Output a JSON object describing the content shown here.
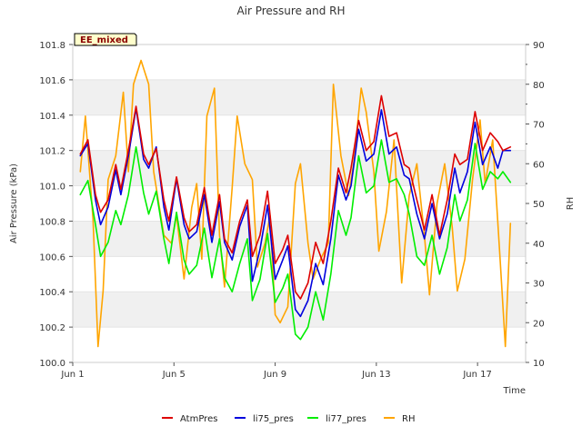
{
  "chart_data": {
    "type": "line",
    "title": "Air Pressure and RH",
    "xlabel": "Time",
    "ylabel": "Air Pressure (kPa)",
    "ylabel_right": "RH",
    "badge": "EE_mixed",
    "xlim": [
      1.0,
      18.9
    ],
    "ylim": [
      100.0,
      101.8
    ],
    "ylim_right": [
      10,
      90
    ],
    "x_ticks": [
      1,
      5,
      9,
      13,
      17
    ],
    "x_tick_labels": [
      "Jun 1",
      "Jun 5",
      "Jun 9",
      "Jun 13",
      "Jun 17"
    ],
    "y_ticks": [
      100.0,
      100.2,
      100.4,
      100.6,
      100.8,
      101.0,
      101.2,
      101.4,
      101.6,
      101.8
    ],
    "y_tick_labels": [
      "100.0",
      "100.2",
      "100.4",
      "100.6",
      "100.8",
      "101.0",
      "101.2",
      "101.4",
      "101.6",
      "101.8"
    ],
    "y_ticks_right": [
      10,
      20,
      30,
      40,
      50,
      60,
      70,
      80,
      90
    ],
    "y_tick_labels_right": [
      "10",
      "20",
      "30",
      "40",
      "50",
      "60",
      "70",
      "80",
      "90"
    ],
    "grid": "horizontal bands",
    "legend_position": "bottom",
    "series": [
      {
        "name": "AtmPres",
        "color": "#dd0000",
        "axis": "left",
        "x": [
          1.3,
          1.6,
          1.9,
          2.1,
          2.4,
          2.7,
          2.9,
          3.2,
          3.5,
          3.8,
          4.0,
          4.3,
          4.6,
          4.8,
          5.1,
          5.4,
          5.6,
          5.9,
          6.2,
          6.5,
          6.8,
          7.0,
          7.3,
          7.6,
          7.9,
          8.1,
          8.4,
          8.7,
          9.0,
          9.3,
          9.5,
          9.8,
          10.0,
          10.3,
          10.6,
          10.9,
          11.2,
          11.5,
          11.8,
          12.0,
          12.3,
          12.6,
          12.9,
          13.2,
          13.5,
          13.8,
          14.1,
          14.3,
          14.6,
          14.9,
          15.2,
          15.5,
          15.8,
          16.1,
          16.3,
          16.6,
          16.9,
          17.2,
          17.5,
          17.8,
          18.0,
          18.3
        ],
        "y": [
          101.18,
          101.26,
          100.95,
          100.85,
          100.92,
          101.12,
          100.98,
          101.2,
          101.45,
          101.18,
          101.12,
          101.21,
          100.92,
          100.8,
          101.05,
          100.82,
          100.74,
          100.78,
          100.99,
          100.72,
          100.95,
          100.7,
          100.62,
          100.8,
          100.92,
          100.6,
          100.72,
          100.97,
          100.56,
          100.64,
          100.72,
          100.4,
          100.36,
          100.45,
          100.68,
          100.56,
          100.8,
          101.1,
          100.96,
          101.1,
          101.37,
          101.2,
          101.25,
          101.51,
          101.28,
          101.3,
          101.12,
          101.1,
          100.92,
          100.75,
          100.95,
          100.72,
          100.92,
          101.18,
          101.12,
          101.15,
          101.42,
          101.2,
          101.3,
          101.25,
          101.2,
          101.22
        ]
      },
      {
        "name": "li75_pres",
        "color": "#0000dd",
        "axis": "left",
        "x": [
          1.3,
          1.6,
          1.9,
          2.1,
          2.4,
          2.7,
          2.9,
          3.2,
          3.5,
          3.8,
          4.0,
          4.3,
          4.6,
          4.8,
          5.1,
          5.4,
          5.6,
          5.9,
          6.2,
          6.5,
          6.8,
          7.0,
          7.3,
          7.6,
          7.9,
          8.1,
          8.4,
          8.7,
          9.0,
          9.3,
          9.5,
          9.8,
          10.0,
          10.3,
          10.6,
          10.9,
          11.2,
          11.5,
          11.8,
          12.0,
          12.3,
          12.6,
          12.9,
          13.2,
          13.5,
          13.8,
          14.1,
          14.3,
          14.6,
          14.9,
          15.2,
          15.5,
          15.8,
          16.1,
          16.3,
          16.6,
          16.9,
          17.2,
          17.5,
          17.8,
          18.0,
          18.3
        ],
        "y": [
          101.17,
          101.24,
          100.92,
          100.78,
          100.88,
          101.09,
          100.95,
          101.17,
          101.44,
          101.15,
          101.1,
          101.22,
          100.88,
          100.75,
          101.04,
          100.78,
          100.7,
          100.74,
          100.95,
          100.68,
          100.91,
          100.68,
          100.58,
          100.77,
          100.89,
          100.46,
          100.64,
          100.89,
          100.47,
          100.58,
          100.66,
          100.3,
          100.26,
          100.35,
          100.56,
          100.44,
          100.7,
          101.06,
          100.92,
          101.0,
          101.32,
          101.14,
          101.18,
          101.43,
          101.18,
          101.22,
          101.06,
          101.04,
          100.84,
          100.7,
          100.9,
          100.7,
          100.84,
          101.1,
          100.96,
          101.08,
          101.36,
          101.12,
          101.22,
          101.1,
          101.2,
          101.2
        ]
      },
      {
        "name": "li77_pres",
        "color": "#00ee00",
        "axis": "left",
        "x": [
          1.3,
          1.6,
          1.9,
          2.1,
          2.4,
          2.7,
          2.9,
          3.2,
          3.5,
          3.8,
          4.0,
          4.3,
          4.6,
          4.8,
          5.1,
          5.4,
          5.6,
          5.9,
          6.2,
          6.5,
          6.8,
          7.0,
          7.3,
          7.6,
          7.9,
          8.1,
          8.4,
          8.7,
          9.0,
          9.3,
          9.5,
          9.8,
          10.0,
          10.3,
          10.6,
          10.9,
          11.2,
          11.5,
          11.8,
          12.0,
          12.3,
          12.6,
          12.9,
          13.2,
          13.5,
          13.8,
          14.1,
          14.3,
          14.6,
          14.9,
          15.2,
          15.5,
          15.8,
          16.1,
          16.3,
          16.6,
          16.9,
          17.2,
          17.5,
          17.8,
          18.0,
          18.3
        ],
        "y": [
          100.95,
          101.03,
          100.78,
          100.6,
          100.68,
          100.86,
          100.78,
          100.95,
          101.22,
          100.96,
          100.84,
          100.97,
          100.7,
          100.56,
          100.85,
          100.58,
          100.5,
          100.55,
          100.76,
          100.48,
          100.7,
          100.48,
          100.4,
          100.56,
          100.7,
          100.35,
          100.47,
          100.73,
          100.34,
          100.42,
          100.5,
          100.16,
          100.13,
          100.2,
          100.4,
          100.24,
          100.5,
          100.86,
          100.72,
          100.82,
          101.17,
          100.96,
          101.0,
          101.26,
          101.02,
          101.04,
          100.95,
          100.84,
          100.6,
          100.55,
          100.72,
          100.5,
          100.65,
          100.95,
          100.8,
          100.92,
          101.24,
          100.98,
          101.08,
          101.04,
          101.08,
          101.02
        ]
      },
      {
        "name": "RH",
        "color": "#ffa500",
        "axis": "right",
        "x": [
          1.3,
          1.5,
          1.8,
          2.0,
          2.2,
          2.4,
          2.7,
          3.0,
          3.2,
          3.4,
          3.7,
          4.0,
          4.2,
          4.6,
          4.9,
          5.1,
          5.4,
          5.7,
          5.9,
          6.1,
          6.3,
          6.6,
          6.8,
          7.0,
          7.3,
          7.5,
          7.8,
          8.1,
          8.3,
          8.6,
          8.8,
          9.0,
          9.2,
          9.5,
          9.8,
          10.0,
          10.3,
          10.5,
          10.8,
          11.1,
          11.3,
          11.6,
          11.9,
          12.1,
          12.4,
          12.6,
          12.9,
          13.1,
          13.4,
          13.7,
          14.0,
          14.3,
          14.6,
          14.9,
          15.1,
          15.4,
          15.7,
          16.0,
          16.2,
          16.5,
          16.8,
          17.1,
          17.3,
          17.6,
          17.9,
          18.1,
          18.3
        ],
        "y": [
          58,
          72,
          46,
          14,
          28,
          56,
          62,
          78,
          58,
          80,
          86,
          80,
          58,
          42,
          40,
          47,
          31,
          49,
          55,
          36,
          72,
          79,
          42,
          29,
          54,
          72,
          60,
          56,
          34,
          40,
          47,
          22,
          20,
          24,
          55,
          60,
          40,
          31,
          36,
          40,
          80,
          62,
          52,
          60,
          79,
          73,
          58,
          38,
          48,
          66,
          30,
          52,
          60,
          42,
          27,
          50,
          60,
          44,
          28,
          36,
          56,
          71,
          55,
          66,
          35,
          14,
          45
        ]
      }
    ]
  }
}
